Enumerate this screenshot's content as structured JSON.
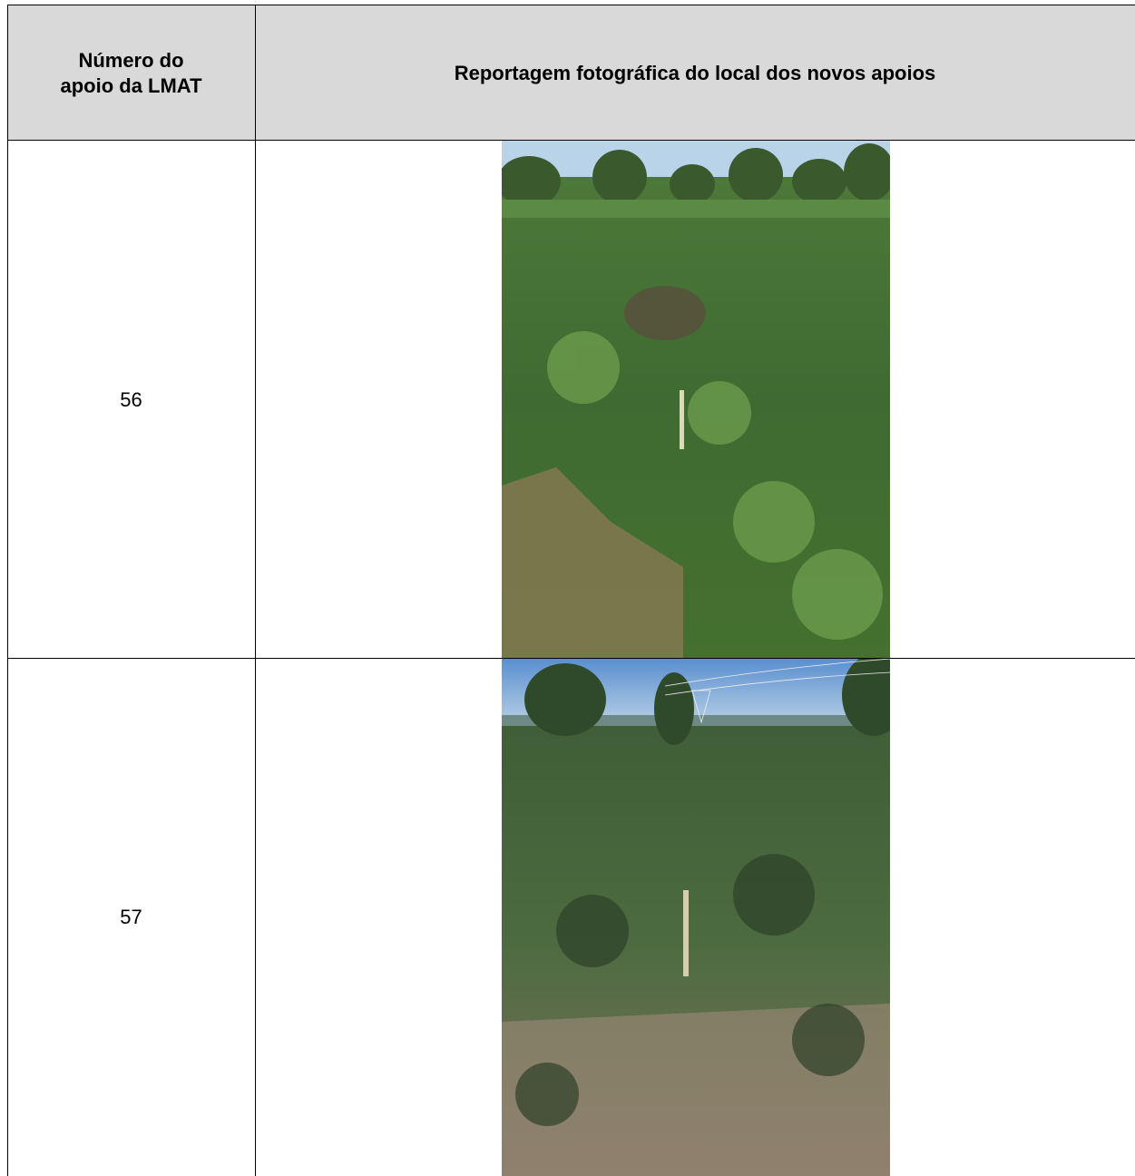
{
  "table": {
    "header": [
      "Número do apoio da LMAT",
      "Reportagem fotográfica do local dos novos apoios"
    ],
    "rows": [
      [
        "56"
      ],
      [
        "57"
      ]
    ]
  }
}
